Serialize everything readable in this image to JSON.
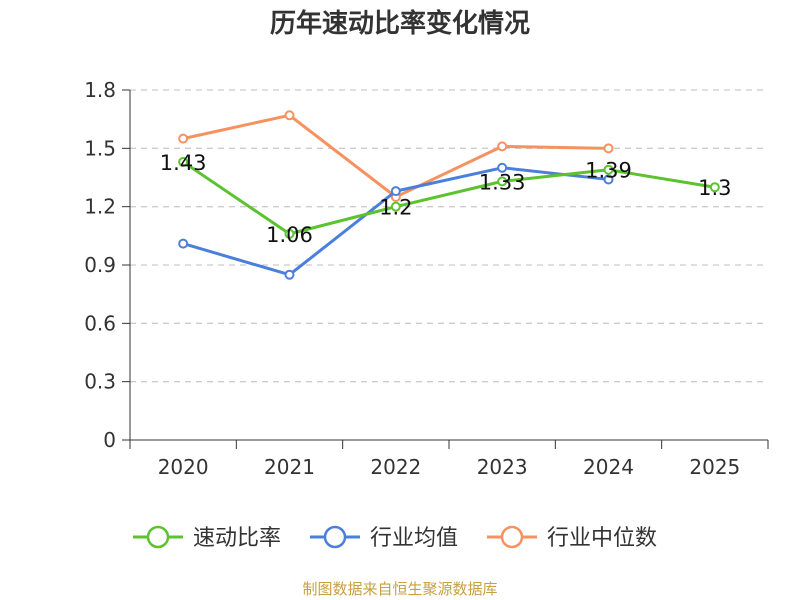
{
  "chart_data": {
    "type": "line",
    "title": "历年速动比率变化情况",
    "categories": [
      "2020",
      "2021",
      "2022",
      "2023",
      "2024",
      "2025"
    ],
    "ylim": [
      0,
      1.8
    ],
    "yticks": [
      "0",
      "0.3",
      "0.6",
      "0.9",
      "1.2",
      "1.5",
      "1.8"
    ],
    "grid": true,
    "legend_position": "bottom",
    "series": [
      {
        "name": "速动比率",
        "color": "#5cc22f",
        "values": [
          1.43,
          1.06,
          1.2,
          1.33,
          1.39,
          1.3
        ],
        "labels": [
          "1.43",
          "1.06",
          "1.2",
          "1.33",
          "1.39",
          "1.3"
        ]
      },
      {
        "name": "行业均值",
        "color": "#4a7fdc",
        "values": [
          1.01,
          0.85,
          1.28,
          1.4,
          1.34,
          null
        ]
      },
      {
        "name": "行业中位数",
        "color": "#f5925f",
        "values": [
          1.55,
          1.67,
          1.25,
          1.51,
          1.5,
          null
        ]
      }
    ],
    "source": "制图数据来自恒生聚源数据库"
  }
}
